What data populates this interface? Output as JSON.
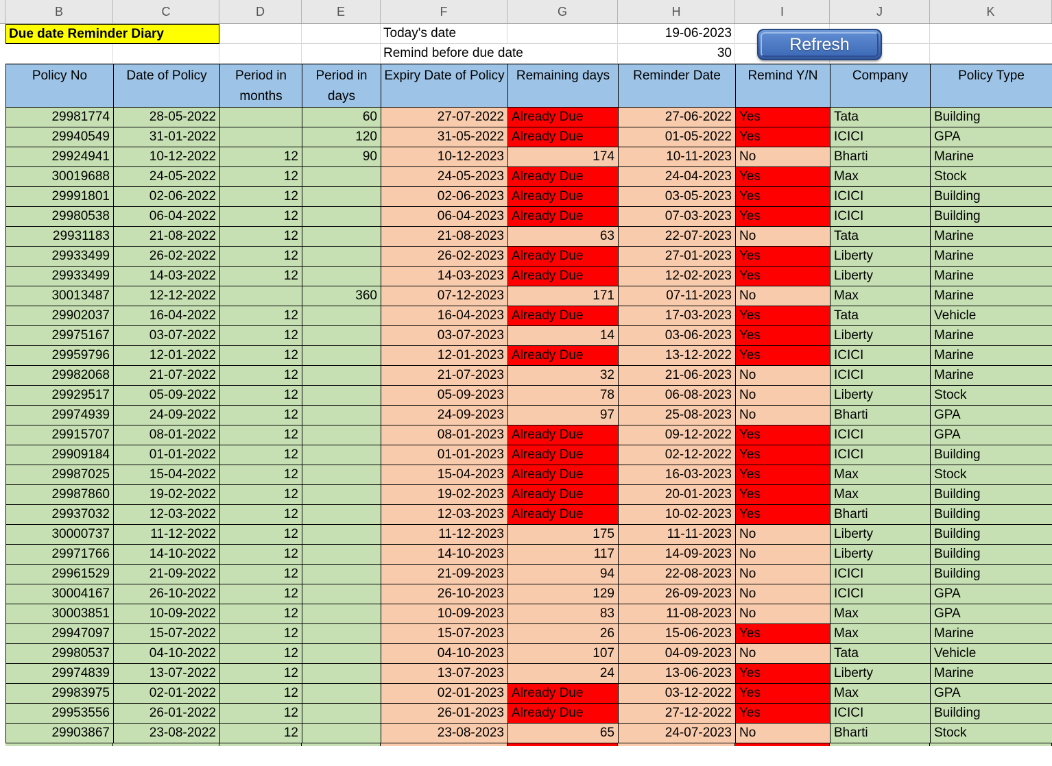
{
  "sheet": {
    "column_letters": [
      "B",
      "C",
      "D",
      "E",
      "F",
      "G",
      "H",
      "I",
      "J",
      "K"
    ],
    "title": "Due date Reminder Diary",
    "todays_date_label": "Today's date",
    "todays_date_value": "19-06-2023",
    "remind_before_label": "Remind before due date",
    "remind_before_value": "30",
    "refresh_button_label": "Refresh"
  },
  "colors": {
    "header_fill": "#9DC3E6",
    "green_fill": "#C6E0B4",
    "orange_fill": "#F8CBAD",
    "red_fill": "#FF0000",
    "title_fill": "#FFFF00"
  },
  "table": {
    "columns": [
      "Policy No",
      "Date of Policy",
      "Period in months",
      "Period in days",
      "Expiry Date of Policy",
      "Remaining days",
      "Reminder Date",
      "Remind Y/N",
      "Company",
      "Policy Type"
    ],
    "rows": [
      [
        "29981774",
        "28-05-2022",
        "",
        "60",
        "27-07-2022",
        "Already Due",
        "27-06-2022",
        "Yes",
        "Tata",
        "Building"
      ],
      [
        "29940549",
        "31-01-2022",
        "",
        "120",
        "31-05-2022",
        "Already Due",
        "01-05-2022",
        "Yes",
        "ICICI",
        "GPA"
      ],
      [
        "29924941",
        "10-12-2022",
        "12",
        "90",
        "10-12-2023",
        "174",
        "10-11-2023",
        "No",
        "Bharti",
        "Marine"
      ],
      [
        "30019688",
        "24-05-2022",
        "12",
        "",
        "24-05-2023",
        "Already Due",
        "24-04-2023",
        "Yes",
        "Max",
        "Stock"
      ],
      [
        "29991801",
        "02-06-2022",
        "12",
        "",
        "02-06-2023",
        "Already Due",
        "03-05-2023",
        "Yes",
        "ICICI",
        "Building"
      ],
      [
        "29980538",
        "06-04-2022",
        "12",
        "",
        "06-04-2023",
        "Already Due",
        "07-03-2023",
        "Yes",
        "ICICI",
        "Building"
      ],
      [
        "29931183",
        "21-08-2022",
        "12",
        "",
        "21-08-2023",
        "63",
        "22-07-2023",
        "No",
        "Tata",
        "Marine"
      ],
      [
        "29933499",
        "26-02-2022",
        "12",
        "",
        "26-02-2023",
        "Already Due",
        "27-01-2023",
        "Yes",
        "Liberty",
        "Marine"
      ],
      [
        "29933499",
        "14-03-2022",
        "12",
        "",
        "14-03-2023",
        "Already Due",
        "12-02-2023",
        "Yes",
        "Liberty",
        "Marine"
      ],
      [
        "30013487",
        "12-12-2022",
        "",
        "360",
        "07-12-2023",
        "171",
        "07-11-2023",
        "No",
        "Max",
        "Marine"
      ],
      [
        "29902037",
        "16-04-2022",
        "12",
        "",
        "16-04-2023",
        "Already Due",
        "17-03-2023",
        "Yes",
        "Tata",
        "Vehicle"
      ],
      [
        "29975167",
        "03-07-2022",
        "12",
        "",
        "03-07-2023",
        "14",
        "03-06-2023",
        "Yes",
        "Liberty",
        "Marine"
      ],
      [
        "29959796",
        "12-01-2022",
        "12",
        "",
        "12-01-2023",
        "Already Due",
        "13-12-2022",
        "Yes",
        "ICICI",
        "Marine"
      ],
      [
        "29982068",
        "21-07-2022",
        "12",
        "",
        "21-07-2023",
        "32",
        "21-06-2023",
        "No",
        "ICICI",
        "Marine"
      ],
      [
        "29929517",
        "05-09-2022",
        "12",
        "",
        "05-09-2023",
        "78",
        "06-08-2023",
        "No",
        "Liberty",
        "Stock"
      ],
      [
        "29974939",
        "24-09-2022",
        "12",
        "",
        "24-09-2023",
        "97",
        "25-08-2023",
        "No",
        "Bharti",
        "GPA"
      ],
      [
        "29915707",
        "08-01-2022",
        "12",
        "",
        "08-01-2023",
        "Already Due",
        "09-12-2022",
        "Yes",
        "ICICI",
        "GPA"
      ],
      [
        "29909184",
        "01-01-2022",
        "12",
        "",
        "01-01-2023",
        "Already Due",
        "02-12-2022",
        "Yes",
        "ICICI",
        "Building"
      ],
      [
        "29987025",
        "15-04-2022",
        "12",
        "",
        "15-04-2023",
        "Already Due",
        "16-03-2023",
        "Yes",
        "Max",
        "Stock"
      ],
      [
        "29987860",
        "19-02-2022",
        "12",
        "",
        "19-02-2023",
        "Already Due",
        "20-01-2023",
        "Yes",
        "Max",
        "Building"
      ],
      [
        "29937032",
        "12-03-2022",
        "12",
        "",
        "12-03-2023",
        "Already Due",
        "10-02-2023",
        "Yes",
        "Bharti",
        "Building"
      ],
      [
        "30000737",
        "11-12-2022",
        "12",
        "",
        "11-12-2023",
        "175",
        "11-11-2023",
        "No",
        "Liberty",
        "Building"
      ],
      [
        "29971766",
        "14-10-2022",
        "12",
        "",
        "14-10-2023",
        "117",
        "14-09-2023",
        "No",
        "Liberty",
        "Building"
      ],
      [
        "29961529",
        "21-09-2022",
        "12",
        "",
        "21-09-2023",
        "94",
        "22-08-2023",
        "No",
        "ICICI",
        "Building"
      ],
      [
        "30004167",
        "26-10-2022",
        "12",
        "",
        "26-10-2023",
        "129",
        "26-09-2023",
        "No",
        "ICICI",
        "GPA"
      ],
      [
        "30003851",
        "10-09-2022",
        "12",
        "",
        "10-09-2023",
        "83",
        "11-08-2023",
        "No",
        "Max",
        "GPA"
      ],
      [
        "29947097",
        "15-07-2022",
        "12",
        "",
        "15-07-2023",
        "26",
        "15-06-2023",
        "Yes",
        "Max",
        "Marine"
      ],
      [
        "29980537",
        "04-10-2022",
        "12",
        "",
        "04-10-2023",
        "107",
        "04-09-2023",
        "No",
        "Tata",
        "Vehicle"
      ],
      [
        "29974839",
        "13-07-2022",
        "12",
        "",
        "13-07-2023",
        "24",
        "13-06-2023",
        "Yes",
        "Liberty",
        "Marine"
      ],
      [
        "29983975",
        "02-01-2022",
        "12",
        "",
        "02-01-2023",
        "Already Due",
        "03-12-2022",
        "Yes",
        "Max",
        "GPA"
      ],
      [
        "29953556",
        "26-01-2022",
        "12",
        "",
        "26-01-2023",
        "Already Due",
        "27-12-2022",
        "Yes",
        "ICICI",
        "Building"
      ],
      [
        "29903867",
        "23-08-2022",
        "12",
        "",
        "23-08-2023",
        "65",
        "24-07-2023",
        "No",
        "Bharti",
        "Stock"
      ]
    ],
    "partial_next_row_fills": [
      "green",
      "green",
      "green",
      "green",
      "orange",
      "red",
      "orange",
      "red",
      "green",
      "green"
    ]
  }
}
